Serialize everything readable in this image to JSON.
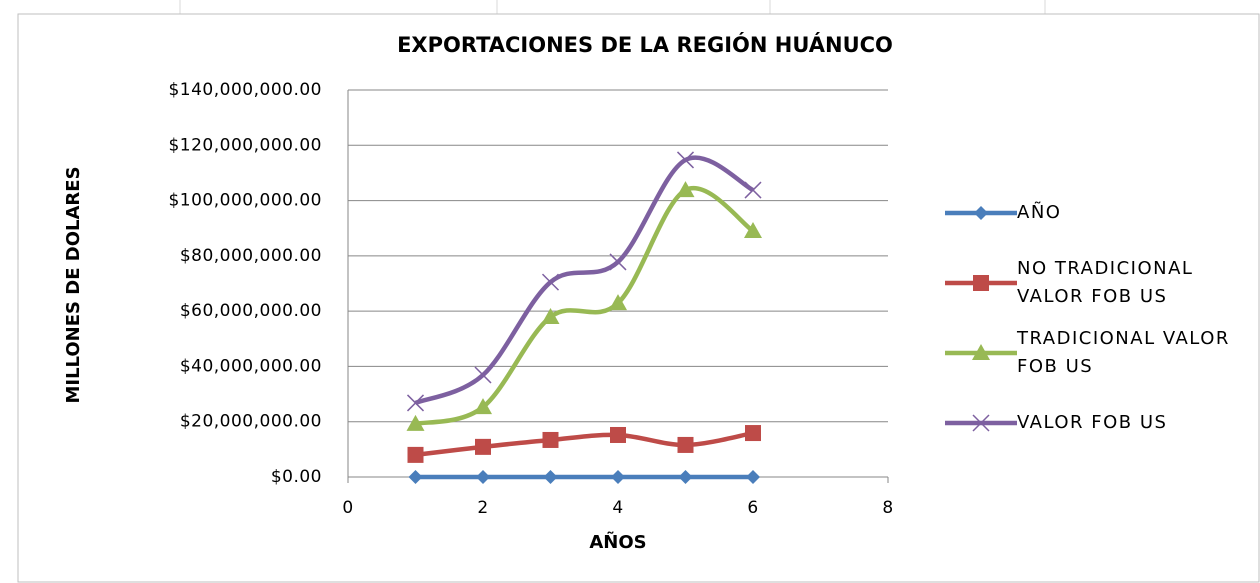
{
  "chart_data": {
    "type": "scatter",
    "title": "EXPORTACIONES DE LA REGIÓN HUÁNUCO",
    "x_label": "AÑOS",
    "y_label": "MILLONES DE DOLARES",
    "smooth": true,
    "grid": true,
    "legend": "right",
    "xlim": [
      0,
      8
    ],
    "xticks": [
      0,
      2,
      4,
      6,
      8
    ],
    "ylim": [
      0,
      140000000
    ],
    "yticks": [
      {
        "value": 0,
        "label": "$0.00"
      },
      {
        "value": 20000000,
        "label": "$20,000,000.00"
      },
      {
        "value": 40000000,
        "label": "$40,000,000.00"
      },
      {
        "value": 60000000,
        "label": "$60,000,000.00"
      },
      {
        "value": 80000000,
        "label": "$80,000,000.00"
      },
      {
        "value": 100000000,
        "label": "$100,000,000.00"
      },
      {
        "value": 120000000,
        "label": "$120,000,000.00"
      },
      {
        "value": 140000000,
        "label": "$140,000,000.00"
      }
    ],
    "series": [
      {
        "name": "AÑO",
        "color": "#4a7ebb",
        "marker": "diamond",
        "x": [
          1,
          2,
          3,
          4,
          5,
          6
        ],
        "values": [
          0,
          0,
          0,
          0,
          0,
          0
        ]
      },
      {
        "name": "NO TRADICIONAL VALOR FOB US",
        "color": "#be4b48",
        "marker": "square",
        "x": [
          1,
          2,
          3,
          4,
          5,
          6
        ],
        "values": [
          8000000,
          10900000,
          13400000,
          15200000,
          11600000,
          15900000
        ]
      },
      {
        "name": "TRADICIONAL VALOR FOB US",
        "color": "#98b954",
        "marker": "triangle",
        "x": [
          1,
          2,
          3,
          4,
          5,
          6
        ],
        "values": [
          19200000,
          25300000,
          57900000,
          62900000,
          103800000,
          89000000
        ]
      },
      {
        "name": "VALOR FOB US",
        "color": "#7d60a0",
        "marker": "x",
        "x": [
          1,
          2,
          3,
          4,
          5,
          6
        ],
        "values": [
          26800000,
          36900000,
          70500000,
          77800000,
          114700000,
          103800000
        ]
      }
    ]
  }
}
